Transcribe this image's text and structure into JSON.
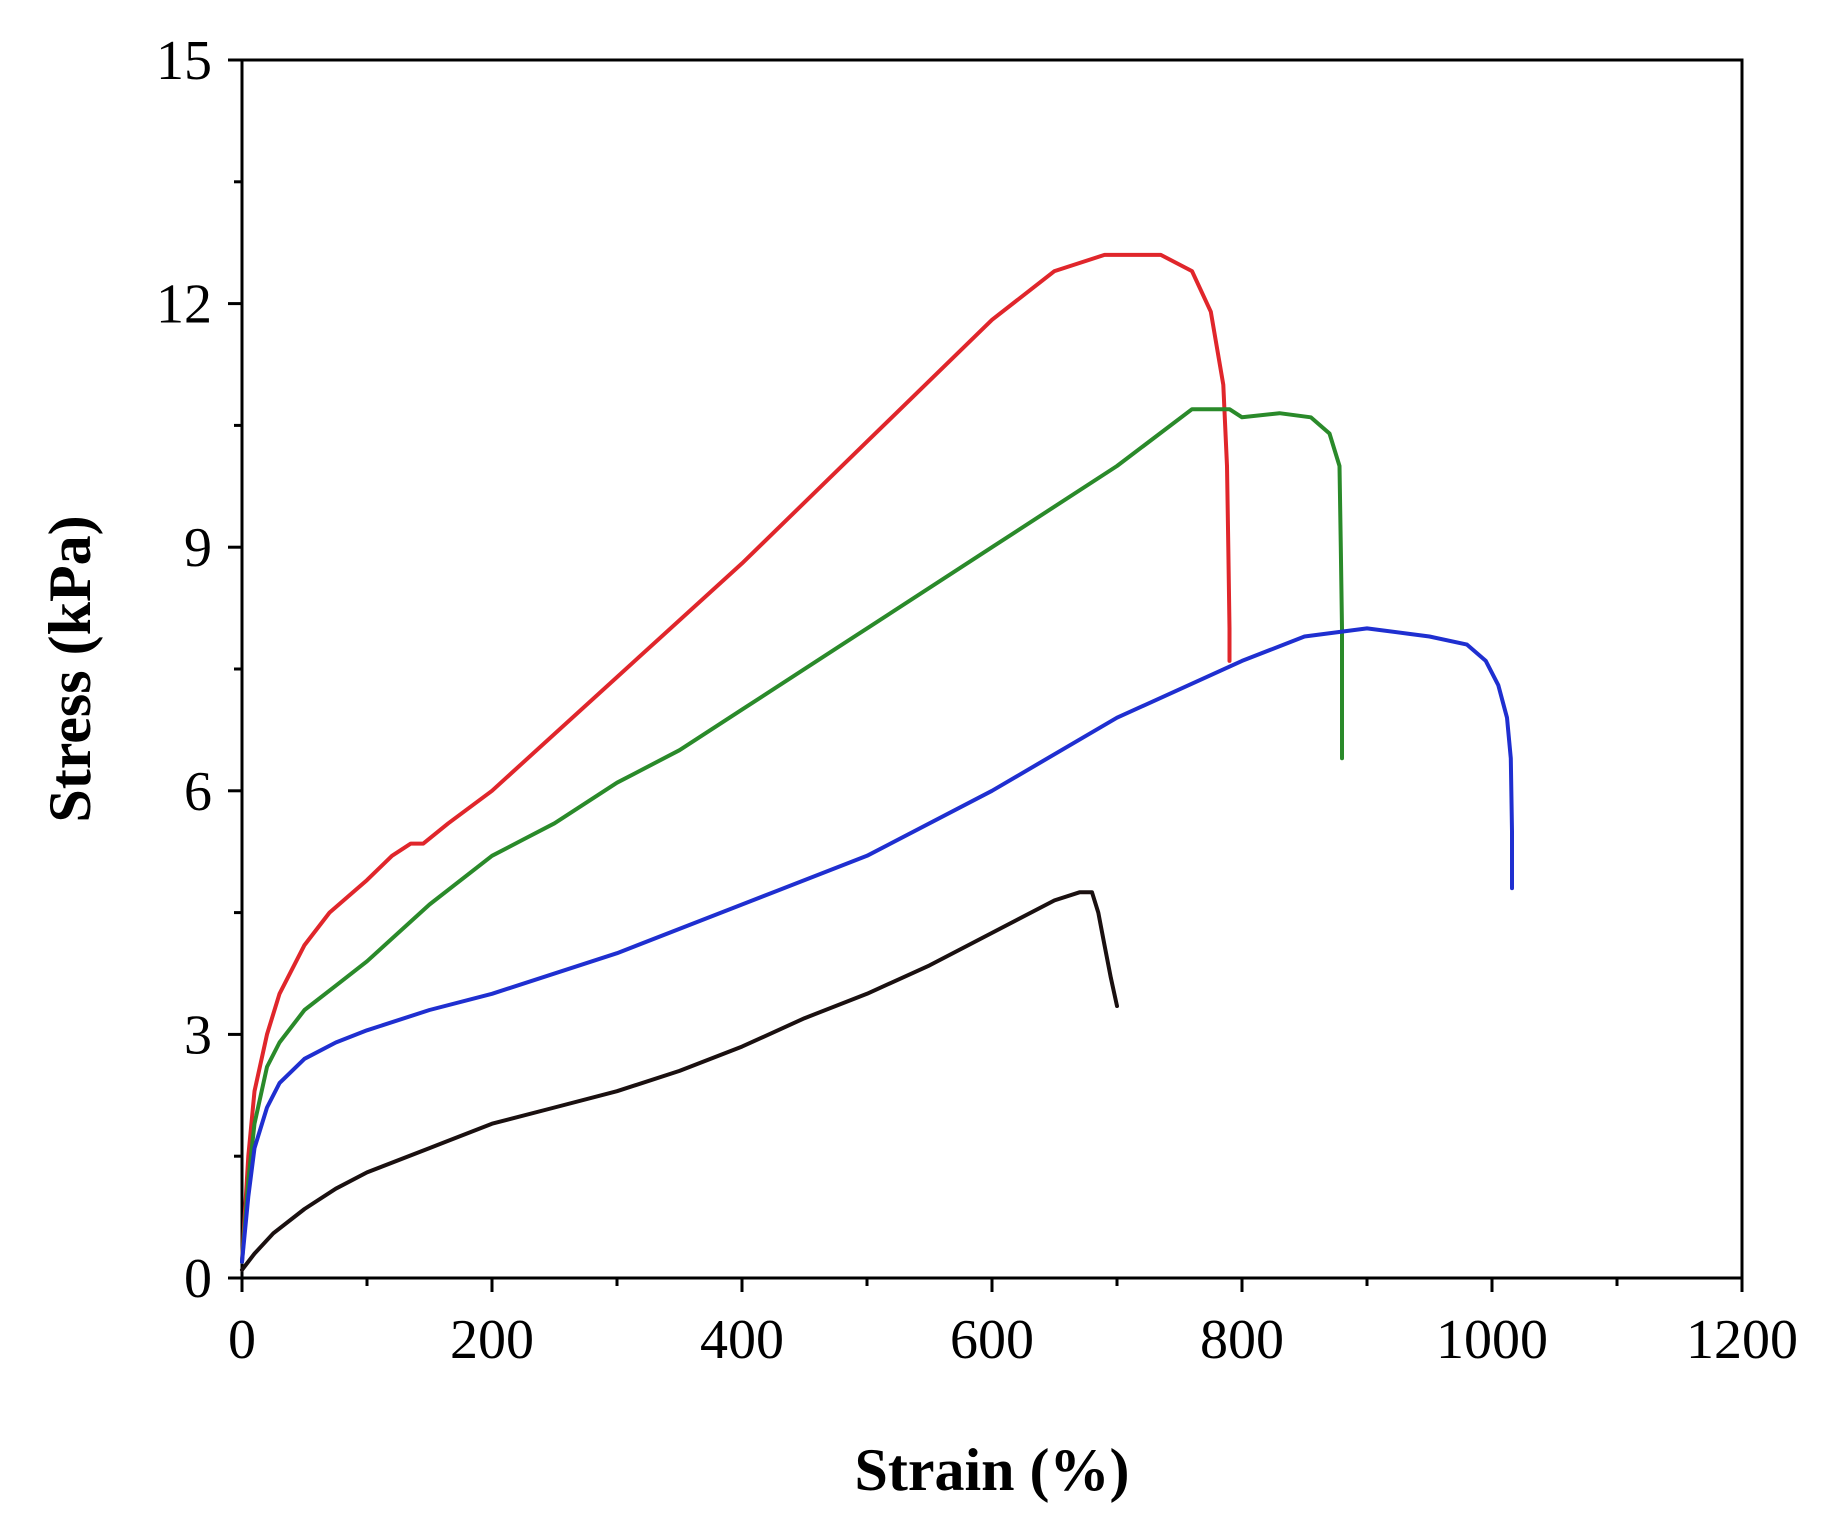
{
  "chart_data": {
    "type": "line",
    "title": "",
    "xlabel": "Strain (%)",
    "ylabel": "Stress (kPa)",
    "xlim": [
      0,
      1200
    ],
    "ylim": [
      0,
      15
    ],
    "x_major_ticks": [
      0,
      200,
      400,
      600,
      800,
      1000,
      1200
    ],
    "x_tick_labels": [
      "0",
      "200",
      "400",
      "600",
      "800",
      "1000",
      "1200"
    ],
    "x_minor_step": 100,
    "y_major_ticks": [
      0,
      3,
      6,
      9,
      12,
      15
    ],
    "y_tick_labels": [
      "0",
      "3",
      "6",
      "9",
      "12",
      "15"
    ],
    "y_minor_step": 1.5,
    "grid": false,
    "legend": "none",
    "series": [
      {
        "color": "#e0262b",
        "points": [
          [
            0,
            0.2
          ],
          [
            5,
            1.5
          ],
          [
            10,
            2.3
          ],
          [
            20,
            3.0
          ],
          [
            30,
            3.5
          ],
          [
            50,
            4.1
          ],
          [
            70,
            4.5
          ],
          [
            100,
            4.9
          ],
          [
            120,
            5.2
          ],
          [
            135,
            5.35
          ],
          [
            145,
            5.35
          ],
          [
            165,
            5.6
          ],
          [
            200,
            6.0
          ],
          [
            300,
            7.4
          ],
          [
            400,
            8.8
          ],
          [
            500,
            10.3
          ],
          [
            600,
            11.8
          ],
          [
            650,
            12.4
          ],
          [
            690,
            12.6
          ],
          [
            735,
            12.6
          ],
          [
            760,
            12.4
          ],
          [
            775,
            11.9
          ],
          [
            785,
            11.0
          ],
          [
            788,
            10.0
          ],
          [
            789,
            9.0
          ],
          [
            790,
            8.0
          ],
          [
            790,
            7.6
          ]
        ]
      },
      {
        "color": "#2a8a2a",
        "points": [
          [
            0,
            0.2
          ],
          [
            5,
            1.2
          ],
          [
            10,
            1.9
          ],
          [
            20,
            2.6
          ],
          [
            30,
            2.9
          ],
          [
            50,
            3.3
          ],
          [
            75,
            3.6
          ],
          [
            100,
            3.9
          ],
          [
            150,
            4.6
          ],
          [
            200,
            5.2
          ],
          [
            225,
            5.4
          ],
          [
            250,
            5.6
          ],
          [
            300,
            6.1
          ],
          [
            350,
            6.5
          ],
          [
            400,
            7.0
          ],
          [
            500,
            8.0
          ],
          [
            600,
            9.0
          ],
          [
            700,
            10.0
          ],
          [
            760,
            10.7
          ],
          [
            790,
            10.7
          ],
          [
            800,
            10.6
          ],
          [
            830,
            10.65
          ],
          [
            855,
            10.6
          ],
          [
            870,
            10.4
          ],
          [
            878,
            10.0
          ],
          [
            879,
            9.0
          ],
          [
            880,
            8.0
          ],
          [
            880,
            6.4
          ]
        ]
      },
      {
        "color": "#1f2fd0",
        "points": [
          [
            0,
            0.2
          ],
          [
            5,
            1.0
          ],
          [
            10,
            1.6
          ],
          [
            20,
            2.1
          ],
          [
            30,
            2.4
          ],
          [
            50,
            2.7
          ],
          [
            75,
            2.9
          ],
          [
            100,
            3.05
          ],
          [
            150,
            3.3
          ],
          [
            200,
            3.5
          ],
          [
            300,
            4.0
          ],
          [
            400,
            4.6
          ],
          [
            500,
            5.2
          ],
          [
            600,
            6.0
          ],
          [
            700,
            6.9
          ],
          [
            800,
            7.6
          ],
          [
            850,
            7.9
          ],
          [
            900,
            8.0
          ],
          [
            950,
            7.9
          ],
          [
            980,
            7.8
          ],
          [
            995,
            7.6
          ],
          [
            1005,
            7.3
          ],
          [
            1012,
            6.9
          ],
          [
            1015,
            6.4
          ],
          [
            1016,
            5.5
          ],
          [
            1016,
            4.8
          ]
        ]
      },
      {
        "color": "#1a1010",
        "points": [
          [
            0,
            0.1
          ],
          [
            10,
            0.3
          ],
          [
            25,
            0.55
          ],
          [
            50,
            0.85
          ],
          [
            75,
            1.1
          ],
          [
            100,
            1.3
          ],
          [
            150,
            1.6
          ],
          [
            200,
            1.9
          ],
          [
            250,
            2.1
          ],
          [
            300,
            2.3
          ],
          [
            350,
            2.55
          ],
          [
            400,
            2.85
          ],
          [
            450,
            3.2
          ],
          [
            500,
            3.5
          ],
          [
            550,
            3.85
          ],
          [
            600,
            4.25
          ],
          [
            650,
            4.65
          ],
          [
            670,
            4.75
          ],
          [
            680,
            4.75
          ],
          [
            685,
            4.5
          ],
          [
            690,
            4.1
          ],
          [
            695,
            3.7
          ],
          [
            700,
            3.35
          ]
        ]
      }
    ]
  }
}
